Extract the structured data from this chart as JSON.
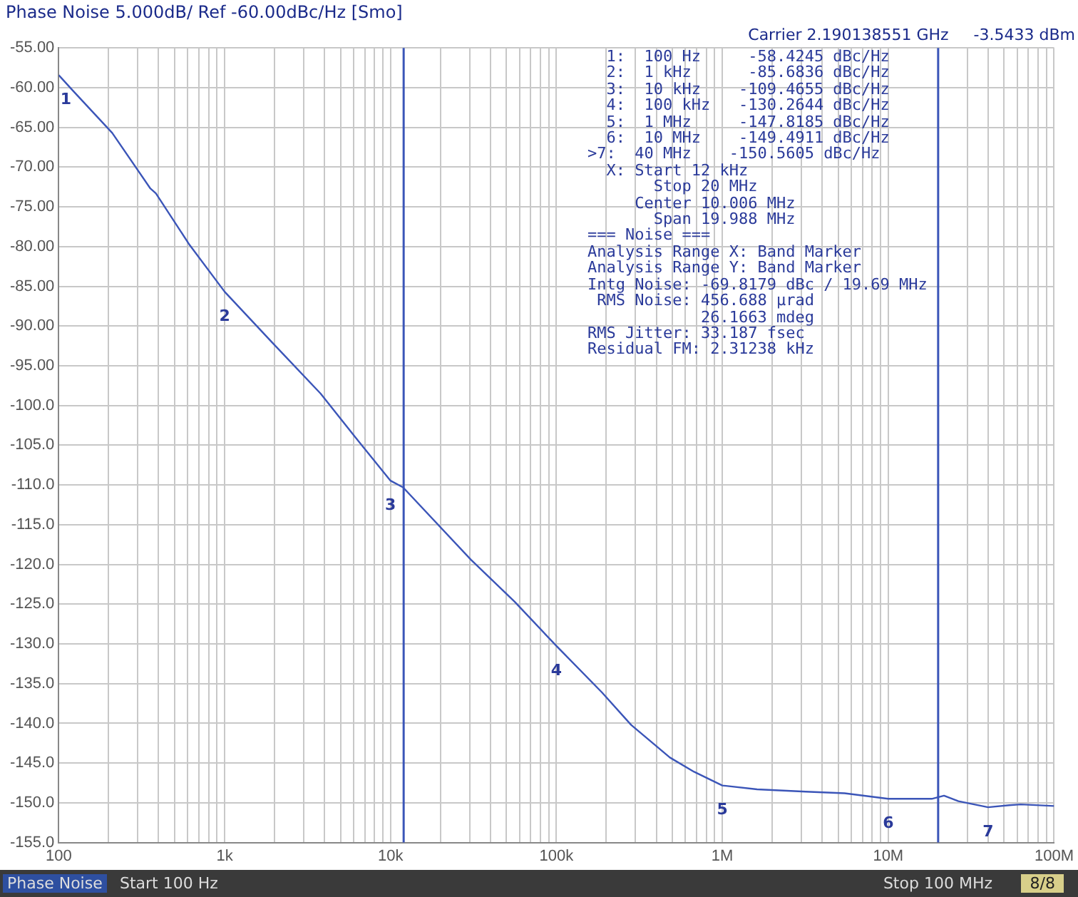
{
  "chart_data": {
    "type": "line",
    "title": "Phase Noise 5.000dB/ Ref -60.00dBc/Hz [Smo]",
    "subtitle": "Carrier 2.190138551 GHz     -3.5433 dBm",
    "x": [
      100,
      122,
      210,
      357,
      385,
      615,
      1000,
      1940,
      3790,
      6030,
      10000,
      11900,
      30500,
      56000,
      100000,
      188000,
      282000,
      483000,
      676000,
      1000000,
      1620000,
      3180000,
      5460000,
      10000000,
      18300000,
      21700000,
      26500000,
      40000000,
      53700000,
      63000000,
      100000000
    ],
    "series": [
      {
        "color": "#3b55b8",
        "values": [
          -58.4245,
          -60.4,
          -65.7,
          -72.7,
          -73.3,
          -79.8,
          -85.6836,
          -92.1,
          -98.5,
          -103.8,
          -109.4655,
          -110.3,
          -119.4,
          -124.7,
          -130.2644,
          -136.1,
          -140.2,
          -144.3,
          -146.1,
          -147.8185,
          -148.3,
          -148.6,
          -148.8,
          -149.4911,
          -149.5,
          -149.1,
          -149.8,
          -150.5605,
          -150.3,
          -150.2,
          -150.4
        ]
      }
    ],
    "log": "x",
    "xlim": [
      100,
      100000000
    ],
    "xticks": [
      {
        "value": 100,
        "label": "100"
      },
      {
        "value": 200,
        "label": null
      },
      {
        "value": 300,
        "label": null
      },
      {
        "value": 400,
        "label": null
      },
      {
        "value": 500,
        "label": null
      },
      {
        "value": 600,
        "label": null
      },
      {
        "value": 700,
        "label": null
      },
      {
        "value": 800,
        "label": null
      },
      {
        "value": 900,
        "label": null
      },
      {
        "value": 1000,
        "label": "1k"
      },
      {
        "value": 2000,
        "label": null
      },
      {
        "value": 3000,
        "label": null
      },
      {
        "value": 4000,
        "label": null
      },
      {
        "value": 5000,
        "label": null
      },
      {
        "value": 6000,
        "label": null
      },
      {
        "value": 7000,
        "label": null
      },
      {
        "value": 8000,
        "label": null
      },
      {
        "value": 9000,
        "label": null
      },
      {
        "value": 10000,
        "label": "10k"
      },
      {
        "value": 20000,
        "label": null
      },
      {
        "value": 30000,
        "label": null
      },
      {
        "value": 40000,
        "label": null
      },
      {
        "value": 50000,
        "label": null
      },
      {
        "value": 60000,
        "label": null
      },
      {
        "value": 70000,
        "label": null
      },
      {
        "value": 80000,
        "label": null
      },
      {
        "value": 90000,
        "label": null
      },
      {
        "value": 100000,
        "label": "100k"
      },
      {
        "value": 200000,
        "label": null
      },
      {
        "value": 300000,
        "label": null
      },
      {
        "value": 400000,
        "label": null
      },
      {
        "value": 500000,
        "label": null
      },
      {
        "value": 600000,
        "label": null
      },
      {
        "value": 700000,
        "label": null
      },
      {
        "value": 800000,
        "label": null
      },
      {
        "value": 900000,
        "label": null
      },
      {
        "value": 1000000,
        "label": "1M"
      },
      {
        "value": 2000000,
        "label": null
      },
      {
        "value": 3000000,
        "label": null
      },
      {
        "value": 4000000,
        "label": null
      },
      {
        "value": 5000000,
        "label": null
      },
      {
        "value": 6000000,
        "label": null
      },
      {
        "value": 7000000,
        "label": null
      },
      {
        "value": 8000000,
        "label": null
      },
      {
        "value": 9000000,
        "label": null
      },
      {
        "value": 10000000,
        "label": "10M"
      },
      {
        "value": 20000000,
        "label": null
      },
      {
        "value": 30000000,
        "label": null
      },
      {
        "value": 40000000,
        "label": null
      },
      {
        "value": 50000000,
        "label": null
      },
      {
        "value": 60000000,
        "label": null
      },
      {
        "value": 70000000,
        "label": null
      },
      {
        "value": 80000000,
        "label": null
      },
      {
        "value": 90000000,
        "label": null
      },
      {
        "value": 100000000,
        "label": "100M"
      }
    ],
    "ylim": [
      -155,
      -55
    ],
    "yticks": [
      {
        "value": -55,
        "label": "-55.00"
      },
      {
        "value": -60,
        "label": "-60.00"
      },
      {
        "value": -65,
        "label": "-65.00"
      },
      {
        "value": -70,
        "label": "-70.00"
      },
      {
        "value": -75,
        "label": "-75.00"
      },
      {
        "value": -80,
        "label": "-80.00"
      },
      {
        "value": -85,
        "label": "-85.00"
      },
      {
        "value": -90,
        "label": "-90.00"
      },
      {
        "value": -95,
        "label": "-95.00"
      },
      {
        "value": -100,
        "label": "-100.0"
      },
      {
        "value": -105,
        "label": "-105.0"
      },
      {
        "value": -110,
        "label": "-110.0"
      },
      {
        "value": -115,
        "label": "-115.0"
      },
      {
        "value": -120,
        "label": "-120.0"
      },
      {
        "value": -125,
        "label": "-125.0"
      },
      {
        "value": -130,
        "label": "-130.0"
      },
      {
        "value": -135,
        "label": "-135.0"
      },
      {
        "value": -140,
        "label": "-140.0"
      },
      {
        "value": -145,
        "label": "-145.0"
      },
      {
        "value": -150,
        "label": "-150.0"
      },
      {
        "value": -155,
        "label": "-155.0"
      }
    ],
    "grid": true,
    "legend": false,
    "marker": "none",
    "line_style": "solid",
    "ref_lines": [
      {
        "axis": "x",
        "value": 12000,
        "color": "#3b55b8"
      },
      {
        "axis": "x",
        "value": 20000000,
        "color": "#3b55b8"
      }
    ],
    "annotations": [
      {
        "text": "1",
        "x": 100,
        "y": -58.4245
      },
      {
        "text": "2",
        "x": 1000,
        "y": -85.6836
      },
      {
        "text": "3",
        "x": 10000,
        "y": -109.4655
      },
      {
        "text": "4",
        "x": 100000,
        "y": -130.2644
      },
      {
        "text": "5",
        "x": 1000000,
        "y": -147.8185
      },
      {
        "text": "6",
        "x": 10000000,
        "y": -149.4911
      },
      {
        "text": "7",
        "x": 40000000,
        "y": -150.5605
      },
      "  1:  100 Hz     -58.4245 dBc/Hz",
      "  2:  1 kHz      -85.6836 dBc/Hz",
      "  3:  10 kHz    -109.4655 dBc/Hz",
      "  4:  100 kHz   -130.2644 dBc/Hz",
      "  5:  1 MHz     -147.8185 dBc/Hz",
      "  6:  10 MHz    -149.4911 dBc/Hz",
      ">7:  40 MHz    -150.5605 dBc/Hz",
      "  X: Start 12 kHz",
      "       Stop 20 MHz",
      "     Center 10.006 MHz",
      "       Span 19.988 MHz",
      "=== Noise ===",
      "Analysis Range X: Band Marker",
      "Analysis Range Y: Band Marker",
      "Intg Noise: -69.8179 dBc / 19.69 MHz",
      " RMS Noise: 456.688 µrad",
      "            26.1663 mdeg",
      "RMS Jitter: 33.187 fsec",
      "Residual FM: 2.31238 kHz",
      "Phase Noise",
      "Start 100 Hz",
      "Stop 100 MHz",
      "8/8"
    ]
  }
}
